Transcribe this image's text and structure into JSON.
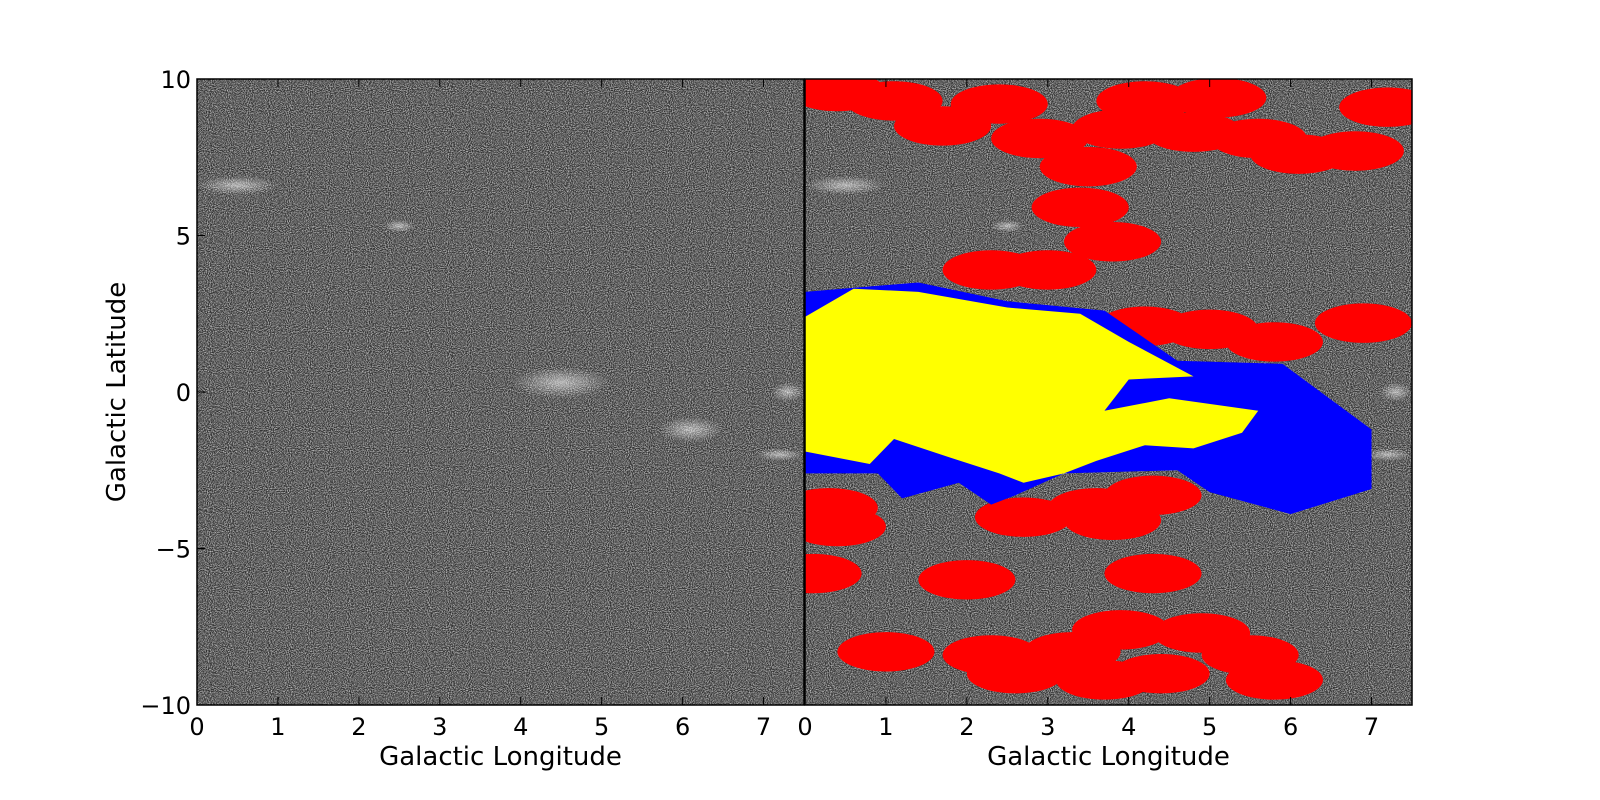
{
  "chart_data": [
    {
      "type": "heatmap",
      "panel": "left",
      "description_colors": {
        "map_background": "#2e2e2e",
        "map_noise": "grayscale",
        "frame": "#000000"
      },
      "xlabel": "Galactic Longitude",
      "ylabel": "Galactic Latitude",
      "xlim": [
        0,
        7.5
      ],
      "ylim": [
        -10,
        10
      ],
      "xticks": [
        "0",
        "1",
        "2",
        "3",
        "4",
        "5",
        "6",
        "7"
      ],
      "yticks": [
        "10",
        "5",
        "0",
        "−5",
        "−10"
      ],
      "grid": false
    },
    {
      "type": "heatmap",
      "panel": "right",
      "xlabel": "Galactic Longitude",
      "ylabel": "",
      "xlim": [
        0,
        7.5
      ],
      "ylim": [
        -10,
        10
      ],
      "xticks": [
        "0",
        "1",
        "2",
        "3",
        "4",
        "5",
        "6",
        "7"
      ],
      "grid": false,
      "overlay_colors": {
        "red": "#ff0000",
        "blue": "#0000ff",
        "yellow": "#ffff00"
      },
      "red_circles": [
        {
          "l": 0.4,
          "b": 9.6,
          "r": 0.6
        },
        {
          "l": 1.1,
          "b": 9.3,
          "r": 0.6
        },
        {
          "l": 1.7,
          "b": 8.5,
          "r": 0.6
        },
        {
          "l": 2.4,
          "b": 9.2,
          "r": 0.6
        },
        {
          "l": 2.9,
          "b": 8.1,
          "r": 0.6
        },
        {
          "l": 3.5,
          "b": 7.2,
          "r": 0.6
        },
        {
          "l": 3.9,
          "b": 8.4,
          "r": 0.6
        },
        {
          "l": 4.2,
          "b": 9.3,
          "r": 0.6
        },
        {
          "l": 4.8,
          "b": 8.3,
          "r": 0.6
        },
        {
          "l": 5.1,
          "b": 9.4,
          "r": 0.6
        },
        {
          "l": 5.6,
          "b": 8.1,
          "r": 0.6
        },
        {
          "l": 6.1,
          "b": 7.6,
          "r": 0.6
        },
        {
          "l": 6.8,
          "b": 7.7,
          "r": 0.6
        },
        {
          "l": 7.2,
          "b": 9.1,
          "r": 0.6
        },
        {
          "l": 3.4,
          "b": 5.9,
          "r": 0.6
        },
        {
          "l": 3.8,
          "b": 4.8,
          "r": 0.6
        },
        {
          "l": 2.3,
          "b": 3.9,
          "r": 0.6
        },
        {
          "l": 3.0,
          "b": 3.9,
          "r": 0.6
        },
        {
          "l": 4.2,
          "b": 2.1,
          "r": 0.6
        },
        {
          "l": 5.0,
          "b": 2.0,
          "r": 0.6
        },
        {
          "l": 5.8,
          "b": 1.6,
          "r": 0.6
        },
        {
          "l": 6.9,
          "b": 2.2,
          "r": 0.6
        },
        {
          "l": 4.3,
          "b": -3.3,
          "r": 0.6
        },
        {
          "l": 3.6,
          "b": -3.7,
          "r": 0.6
        },
        {
          "l": 2.7,
          "b": -4.0,
          "r": 0.6
        },
        {
          "l": 3.8,
          "b": -4.1,
          "r": 0.6
        },
        {
          "l": 0.3,
          "b": -3.7,
          "r": 0.6
        },
        {
          "l": 0.4,
          "b": -4.3,
          "r": 0.6
        },
        {
          "l": 0.1,
          "b": -5.8,
          "r": 0.6
        },
        {
          "l": 2.0,
          "b": -6.0,
          "r": 0.6
        },
        {
          "l": 4.3,
          "b": -5.8,
          "r": 0.6
        },
        {
          "l": 1.0,
          "b": -8.3,
          "r": 0.6
        },
        {
          "l": 2.3,
          "b": -8.4,
          "r": 0.6
        },
        {
          "l": 2.6,
          "b": -9.0,
          "r": 0.6
        },
        {
          "l": 3.3,
          "b": -8.3,
          "r": 0.6
        },
        {
          "l": 3.9,
          "b": -7.6,
          "r": 0.6
        },
        {
          "l": 4.4,
          "b": -9.0,
          "r": 0.6
        },
        {
          "l": 4.9,
          "b": -7.7,
          "r": 0.6
        },
        {
          "l": 5.5,
          "b": -8.4,
          "r": 0.6
        },
        {
          "l": 5.8,
          "b": -9.2,
          "r": 0.6
        },
        {
          "l": 3.7,
          "b": -9.2,
          "r": 0.6
        }
      ],
      "blue_polygon": [
        {
          "l": 0.0,
          "b": 3.2
        },
        {
          "l": 1.4,
          "b": 3.5
        },
        {
          "l": 2.5,
          "b": 2.9
        },
        {
          "l": 3.7,
          "b": 2.6
        },
        {
          "l": 4.6,
          "b": 1.0
        },
        {
          "l": 5.9,
          "b": 0.9
        },
        {
          "l": 7.0,
          "b": -1.2
        },
        {
          "l": 7.0,
          "b": -3.1
        },
        {
          "l": 6.0,
          "b": -3.9
        },
        {
          "l": 5.0,
          "b": -3.2
        },
        {
          "l": 4.6,
          "b": -2.5
        },
        {
          "l": 3.2,
          "b": -2.6
        },
        {
          "l": 2.6,
          "b": -3.3
        },
        {
          "l": 2.3,
          "b": -3.6
        },
        {
          "l": 1.9,
          "b": -2.9
        },
        {
          "l": 1.2,
          "b": -3.4
        },
        {
          "l": 0.9,
          "b": -2.6
        },
        {
          "l": 0.0,
          "b": -2.6
        }
      ],
      "yellow_polygon": [
        {
          "l": 0.0,
          "b": 2.4
        },
        {
          "l": 0.6,
          "b": 3.3
        },
        {
          "l": 1.4,
          "b": 3.2
        },
        {
          "l": 2.5,
          "b": 2.7
        },
        {
          "l": 3.4,
          "b": 2.5
        },
        {
          "l": 4.0,
          "b": 1.6
        },
        {
          "l": 4.8,
          "b": 0.5
        },
        {
          "l": 4.0,
          "b": 0.4
        },
        {
          "l": 3.7,
          "b": -0.6
        },
        {
          "l": 4.5,
          "b": -0.2
        },
        {
          "l": 5.6,
          "b": -0.6
        },
        {
          "l": 5.4,
          "b": -1.3
        },
        {
          "l": 4.8,
          "b": -1.8
        },
        {
          "l": 4.2,
          "b": -1.7
        },
        {
          "l": 3.6,
          "b": -2.2
        },
        {
          "l": 3.2,
          "b": -2.6
        },
        {
          "l": 2.7,
          "b": -2.9
        },
        {
          "l": 2.4,
          "b": -2.6
        },
        {
          "l": 1.8,
          "b": -2.1
        },
        {
          "l": 1.1,
          "b": -1.5
        },
        {
          "l": 0.8,
          "b": -2.3
        },
        {
          "l": 0.0,
          "b": -1.9
        }
      ]
    }
  ]
}
